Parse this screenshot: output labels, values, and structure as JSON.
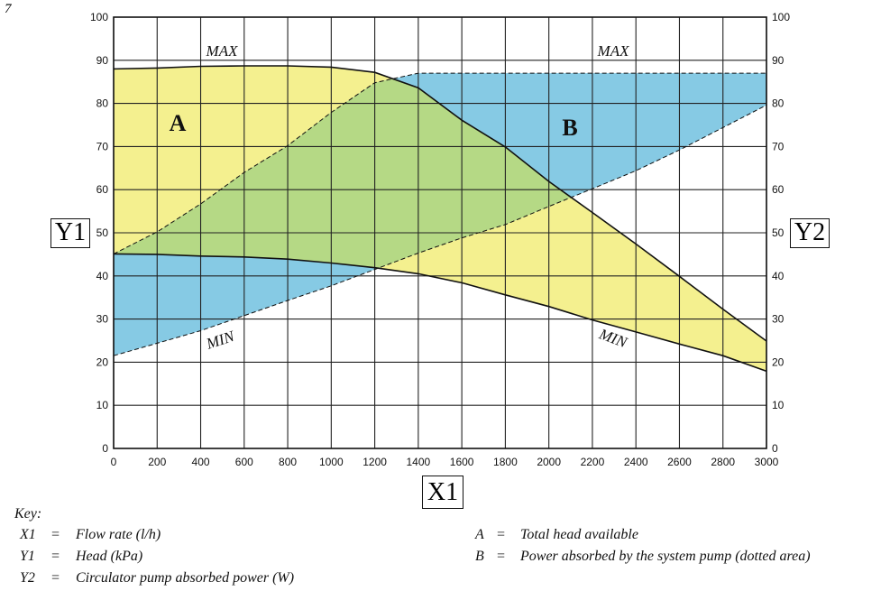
{
  "figure_number": "7",
  "chart_data": {
    "type": "area",
    "xlabel": "X1",
    "ylabel_left": "Y1",
    "ylabel_right": "Y2",
    "xlim": [
      0,
      3000
    ],
    "ylim": [
      0,
      100
    ],
    "y2lim": [
      0,
      100
    ],
    "grid": true,
    "x_ticks": [
      0,
      200,
      400,
      600,
      800,
      1000,
      1200,
      1400,
      1600,
      1800,
      2000,
      2200,
      2400,
      2600,
      2800,
      3000
    ],
    "y_ticks": [
      0,
      10,
      20,
      30,
      40,
      50,
      60,
      70,
      80,
      90,
      100
    ],
    "x": [
      0,
      200,
      400,
      600,
      800,
      1000,
      1200,
      1400,
      1600,
      1800,
      2000,
      2200,
      2400,
      2600,
      2800,
      3000
    ],
    "regions": [
      {
        "name": "A",
        "axis": "Y1",
        "fill": "#f4f08f",
        "upper": {
          "label": "MAX",
          "style": "solid",
          "values": [
            88.0,
            88.2,
            88.6,
            88.7,
            88.7,
            88.4,
            87.2,
            83.6,
            76.1,
            69.9,
            61.9,
            54.7,
            47.4,
            39.9,
            32.3,
            24.9
          ]
        },
        "lower": {
          "label": "MIN",
          "style": "solid",
          "values": [
            45.1,
            45.0,
            44.6,
            44.4,
            43.9,
            43.0,
            41.9,
            40.5,
            38.4,
            35.6,
            32.9,
            29.8,
            27.0,
            24.2,
            21.5,
            17.9
          ]
        }
      },
      {
        "name": "B",
        "axis": "Y2",
        "fill": "#86cae4",
        "upper": {
          "label": "MAX",
          "style": "dashed",
          "values": [
            45.1,
            50.2,
            56.7,
            64.0,
            70.2,
            77.9,
            84.8,
            87.0,
            87.0,
            87.0,
            87.0,
            87.0,
            87.0,
            87.0,
            87.0,
            87.0
          ]
        },
        "lower": {
          "label": "MIN",
          "style": "dashed",
          "values": [
            21.5,
            24.4,
            27.3,
            30.8,
            34.3,
            37.7,
            41.5,
            45.3,
            48.8,
            51.9,
            56.1,
            60.2,
            64.4,
            69.2,
            74.4,
            79.6
          ]
        }
      }
    ],
    "overlap_fill": "#b5d985"
  },
  "key": {
    "title": "Key:",
    "items": [
      {
        "symbol": "X1",
        "eq": "=",
        "text": "Flow rate (l/h)"
      },
      {
        "symbol": "Y1",
        "eq": "=",
        "text": "Head (kPa)"
      },
      {
        "symbol": "Y2",
        "eq": "=",
        "text": "Circulator pump absorbed power (W)"
      },
      {
        "symbol": "A",
        "eq": "=",
        "text": "Total head available"
      },
      {
        "symbol": "B",
        "eq": "=",
        "text": "Power absorbed by the system pump (dotted area)"
      }
    ]
  }
}
